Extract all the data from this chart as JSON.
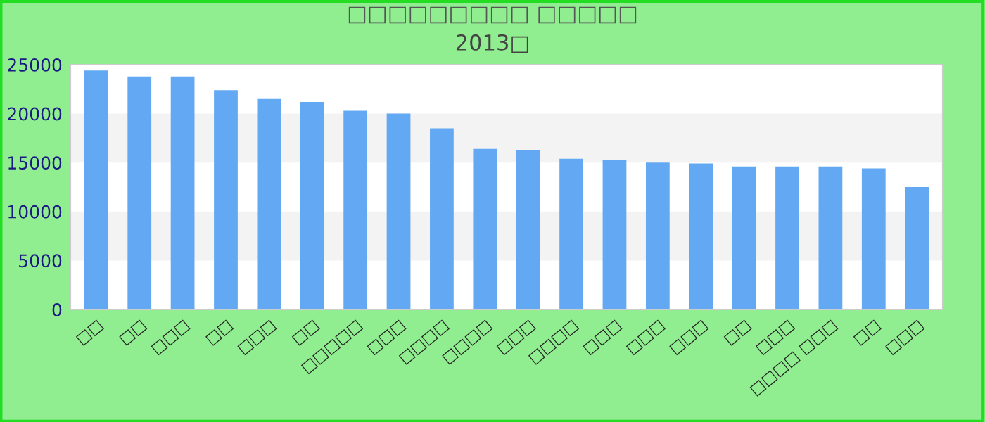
{
  "chart_data": {
    "type": "bar",
    "title": "□□□□□□□□□ □□□□□",
    "subtitle": "2013□",
    "categories": [
      "□□",
      "□□",
      "□□□",
      "□□",
      "□□□",
      "□□",
      "□□□□□",
      "□□□",
      "□□□□",
      "□□□□",
      "□□□",
      "□□□□",
      "□□□",
      "□□□",
      "□□□",
      "□□",
      "□□□",
      "□□□□ □□□",
      "□□",
      "□□□"
    ],
    "values": [
      24400,
      23800,
      23800,
      22400,
      21500,
      21200,
      20300,
      20000,
      18500,
      16400,
      16300,
      15400,
      15300,
      15000,
      14900,
      14600,
      14600,
      14600,
      14400,
      12500
    ],
    "color": "#62a8f2",
    "ylim": [
      0,
      25000
    ],
    "yticks": [
      0,
      5000,
      10000,
      15000,
      20000,
      25000
    ]
  }
}
